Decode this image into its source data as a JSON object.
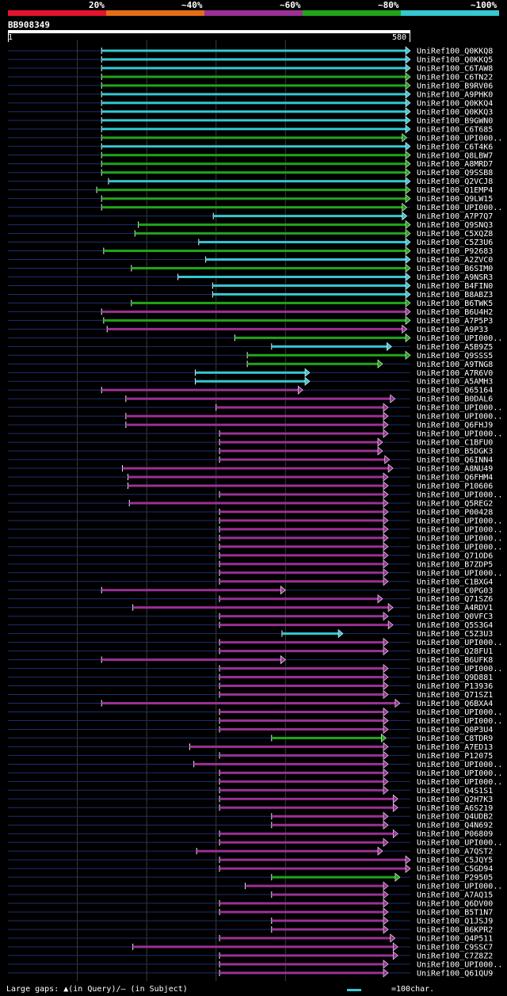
{
  "legend": {
    "items": [
      {
        "label": "20%",
        "color": "#e3152e"
      },
      {
        "label": "~40%",
        "color": "#e46e17"
      },
      {
        "label": "~60%",
        "color": "#9a3196"
      },
      {
        "label": "~80%",
        "color": "#21a51a"
      },
      {
        "label": "~100%",
        "color": "#35c8d2"
      }
    ]
  },
  "query": {
    "id": "BB908349",
    "start": "1",
    "end": "580",
    "length": 580
  },
  "footer": {
    "gaps_text": "Large gaps: ▲(in Query)/– (in Subject)",
    "scale_text": "=100char."
  },
  "chart_data": {
    "type": "alignment-overview",
    "title": "BB908349",
    "x_range": [
      1,
      580
    ],
    "gridlines": [
      100,
      200,
      300,
      400
    ],
    "color_key": {
      "cyan": "~100%",
      "green": "~80%",
      "magenta": "~60%",
      "orange": "~40%",
      "red": "20%"
    },
    "hits": [
      {
        "label": "UniRef100_Q0KKQ8",
        "start": 135,
        "end": 580,
        "identity": "cyan"
      },
      {
        "label": "UniRef100_Q0KKQ5",
        "start": 135,
        "end": 580,
        "identity": "cyan"
      },
      {
        "label": "UniRef100_C6TAW8",
        "start": 135,
        "end": 580,
        "identity": "cyan"
      },
      {
        "label": "UniRef100_C6TN22",
        "start": 135,
        "end": 580,
        "identity": "green"
      },
      {
        "label": "UniRef100_B9RV06",
        "start": 135,
        "end": 580,
        "identity": "green"
      },
      {
        "label": "UniRef100_A9PHK0",
        "start": 135,
        "end": 580,
        "identity": "cyan"
      },
      {
        "label": "UniRef100_Q0KKQ4",
        "start": 135,
        "end": 580,
        "identity": "cyan"
      },
      {
        "label": "UniRef100_Q0KKQ3",
        "start": 135,
        "end": 580,
        "identity": "cyan"
      },
      {
        "label": "UniRef100_B9GWN0",
        "start": 135,
        "end": 580,
        "identity": "cyan"
      },
      {
        "label": "UniRef100_C6T685",
        "start": 135,
        "end": 580,
        "identity": "cyan"
      },
      {
        "label": "UniRef100_UPI000..",
        "start": 135,
        "end": 575,
        "identity": "green"
      },
      {
        "label": "UniRef100_C6T4K6",
        "start": 135,
        "end": 580,
        "identity": "cyan"
      },
      {
        "label": "UniRef100_Q8LBW7",
        "start": 135,
        "end": 580,
        "identity": "green"
      },
      {
        "label": "UniRef100_A8MRD7",
        "start": 135,
        "end": 580,
        "identity": "green"
      },
      {
        "label": "UniRef100_Q9SSB8",
        "start": 135,
        "end": 580,
        "identity": "green"
      },
      {
        "label": "UniRef100_Q2VCJ8",
        "start": 145,
        "end": 580,
        "identity": "cyan"
      },
      {
        "label": "UniRef100_Q1EMP4",
        "start": 128,
        "end": 580,
        "identity": "green"
      },
      {
        "label": "UniRef100_Q9LW15",
        "start": 135,
        "end": 580,
        "identity": "green"
      },
      {
        "label": "UniRef100_UPI000..",
        "start": 135,
        "end": 575,
        "identity": "green"
      },
      {
        "label": "UniRef100_A7P7Q7",
        "start": 296,
        "end": 575,
        "identity": "cyan"
      },
      {
        "label": "UniRef100_Q9SNQ3",
        "start": 188,
        "end": 580,
        "identity": "green"
      },
      {
        "label": "UniRef100_C5XQZ8",
        "start": 183,
        "end": 580,
        "identity": "green"
      },
      {
        "label": "UniRef100_C5Z3U6",
        "start": 275,
        "end": 580,
        "identity": "cyan"
      },
      {
        "label": "UniRef100_P92683",
        "start": 138,
        "end": 580,
        "identity": "green"
      },
      {
        "label": "UniRef100_A2ZVC0",
        "start": 285,
        "end": 580,
        "identity": "cyan"
      },
      {
        "label": "UniRef100_B6SIM0",
        "start": 178,
        "end": 580,
        "identity": "green"
      },
      {
        "label": "UniRef100_A9NSR3",
        "start": 245,
        "end": 580,
        "identity": "cyan"
      },
      {
        "label": "UniRef100_B4FIN0",
        "start": 295,
        "end": 580,
        "identity": "cyan"
      },
      {
        "label": "UniRef100_B8ABZ3",
        "start": 295,
        "end": 580,
        "identity": "cyan"
      },
      {
        "label": "UniRef100_B6TWK5",
        "start": 178,
        "end": 580,
        "identity": "green"
      },
      {
        "label": "UniRef100_B6U4H2",
        "start": 135,
        "end": 580,
        "identity": "magenta"
      },
      {
        "label": "UniRef100_A7P5P3",
        "start": 138,
        "end": 580,
        "identity": "green"
      },
      {
        "label": "UniRef100_A9P33",
        "start": 143,
        "end": 575,
        "identity": "magenta"
      },
      {
        "label": "UniRef100_UPI000..",
        "start": 327,
        "end": 580,
        "identity": "green"
      },
      {
        "label": "UniRef100_A5B9Z5",
        "start": 380,
        "end": 553,
        "identity": "cyan"
      },
      {
        "label": "UniRef100_Q9SSS5",
        "start": 345,
        "end": 580,
        "identity": "green"
      },
      {
        "label": "UniRef100_A9TNG8",
        "start": 345,
        "end": 540,
        "identity": "green"
      },
      {
        "label": "UniRef100_A7R6V0",
        "start": 270,
        "end": 435,
        "identity": "cyan"
      },
      {
        "label": "UniRef100_A5AMH3",
        "start": 270,
        "end": 435,
        "identity": "cyan"
      },
      {
        "label": "UniRef100_Q65164",
        "start": 135,
        "end": 425,
        "identity": "magenta"
      },
      {
        "label": "UniRef100_B0DAL6",
        "start": 170,
        "end": 558,
        "identity": "magenta"
      },
      {
        "label": "UniRef100_UPI000..",
        "start": 300,
        "end": 548,
        "identity": "magenta"
      },
      {
        "label": "UniRef100_UPI000..",
        "start": 170,
        "end": 548,
        "identity": "magenta"
      },
      {
        "label": "UniRef100_Q6FHJ9",
        "start": 170,
        "end": 548,
        "identity": "magenta"
      },
      {
        "label": "UniRef100_UPI000..",
        "start": 305,
        "end": 548,
        "identity": "magenta"
      },
      {
        "label": "UniRef100_C1BFU0",
        "start": 305,
        "end": 540,
        "identity": "magenta"
      },
      {
        "label": "UniRef100_B5DGK3",
        "start": 305,
        "end": 540,
        "identity": "magenta"
      },
      {
        "label": "UniRef100_Q6INN4",
        "start": 305,
        "end": 550,
        "identity": "magenta"
      },
      {
        "label": "UniRef100_A8NU49",
        "start": 165,
        "end": 555,
        "identity": "magenta"
      },
      {
        "label": "UniRef100_Q6FHM4",
        "start": 173,
        "end": 548,
        "identity": "magenta"
      },
      {
        "label": "UniRef100_P10606",
        "start": 173,
        "end": 548,
        "identity": "magenta"
      },
      {
        "label": "UniRef100_UPI000..",
        "start": 305,
        "end": 548,
        "identity": "magenta"
      },
      {
        "label": "UniRef100_Q5REG2",
        "start": 175,
        "end": 548,
        "identity": "magenta"
      },
      {
        "label": "UniRef100_P00428",
        "start": 305,
        "end": 548,
        "identity": "magenta"
      },
      {
        "label": "UniRef100_UPI000..",
        "start": 305,
        "end": 548,
        "identity": "magenta"
      },
      {
        "label": "UniRef100_UPI000..",
        "start": 305,
        "end": 548,
        "identity": "magenta"
      },
      {
        "label": "UniRef100_UPI000..",
        "start": 305,
        "end": 548,
        "identity": "magenta"
      },
      {
        "label": "UniRef100_UPI000..",
        "start": 305,
        "end": 548,
        "identity": "magenta"
      },
      {
        "label": "UniRef100_Q71OD6",
        "start": 305,
        "end": 548,
        "identity": "magenta"
      },
      {
        "label": "UniRef100_B7ZDP5",
        "start": 305,
        "end": 548,
        "identity": "magenta"
      },
      {
        "label": "UniRef100_UPI000..",
        "start": 305,
        "end": 548,
        "identity": "magenta"
      },
      {
        "label": "UniRef100_C1BXG4",
        "start": 305,
        "end": 548,
        "identity": "magenta"
      },
      {
        "label": "UniRef100_C0PG03",
        "start": 135,
        "end": 400,
        "identity": "magenta"
      },
      {
        "label": "UniRef100_Q71SZ6",
        "start": 305,
        "end": 540,
        "identity": "magenta"
      },
      {
        "label": "UniRef100_A4RDV1",
        "start": 180,
        "end": 555,
        "identity": "magenta"
      },
      {
        "label": "UniRef100_Q0VFC3",
        "start": 305,
        "end": 548,
        "identity": "magenta"
      },
      {
        "label": "UniRef100_Q5S3G4",
        "start": 305,
        "end": 555,
        "identity": "magenta"
      },
      {
        "label": "UniRef100_C5Z3U3",
        "start": 395,
        "end": 483,
        "identity": "cyan"
      },
      {
        "label": "UniRef100_UPI000..",
        "start": 305,
        "end": 548,
        "identity": "magenta"
      },
      {
        "label": "UniRef100_Q28FU1",
        "start": 305,
        "end": 548,
        "identity": "magenta"
      },
      {
        "label": "UniRef100_B6UFK8",
        "start": 135,
        "end": 400,
        "identity": "magenta"
      },
      {
        "label": "UniRef100_UPI000..",
        "start": 305,
        "end": 548,
        "identity": "magenta"
      },
      {
        "label": "UniRef100_Q9D881",
        "start": 305,
        "end": 548,
        "identity": "magenta"
      },
      {
        "label": "UniRef100_P13936",
        "start": 305,
        "end": 548,
        "identity": "magenta"
      },
      {
        "label": "UniRef100_Q71SZ1",
        "start": 305,
        "end": 548,
        "identity": "magenta"
      },
      {
        "label": "UniRef100_Q6BXA4",
        "start": 135,
        "end": 565,
        "identity": "magenta"
      },
      {
        "label": "UniRef100_UPI000..",
        "start": 305,
        "end": 548,
        "identity": "magenta"
      },
      {
        "label": "UniRef100_UPI000..",
        "start": 305,
        "end": 548,
        "identity": "magenta"
      },
      {
        "label": "UniRef100_Q0P3U4",
        "start": 305,
        "end": 548,
        "identity": "magenta"
      },
      {
        "label": "UniRef100_C8TDR9",
        "start": 380,
        "end": 545,
        "identity": "green"
      },
      {
        "label": "UniRef100_A7ED13",
        "start": 262,
        "end": 548,
        "identity": "magenta"
      },
      {
        "label": "UniRef100_P12075",
        "start": 305,
        "end": 548,
        "identity": "magenta"
      },
      {
        "label": "UniRef100_UPI000..",
        "start": 268,
        "end": 548,
        "identity": "magenta"
      },
      {
        "label": "UniRef100_UPI000..",
        "start": 305,
        "end": 548,
        "identity": "magenta"
      },
      {
        "label": "UniRef100_UPI000..",
        "start": 305,
        "end": 548,
        "identity": "magenta"
      },
      {
        "label": "UniRef100_Q4S1S1",
        "start": 305,
        "end": 548,
        "identity": "magenta"
      },
      {
        "label": "UniRef100_Q2H7K3",
        "start": 305,
        "end": 562,
        "identity": "magenta"
      },
      {
        "label": "UniRef100_A6S219",
        "start": 305,
        "end": 562,
        "identity": "magenta"
      },
      {
        "label": "UniRef100_Q4UDB2",
        "start": 380,
        "end": 548,
        "identity": "magenta"
      },
      {
        "label": "UniRef100_Q4N692",
        "start": 380,
        "end": 548,
        "identity": "magenta"
      },
      {
        "label": "UniRef100_P06809",
        "start": 305,
        "end": 562,
        "identity": "magenta"
      },
      {
        "label": "UniRef100_UPI000..",
        "start": 305,
        "end": 548,
        "identity": "magenta"
      },
      {
        "label": "UniRef100_A7QST2",
        "start": 272,
        "end": 540,
        "identity": "magenta"
      },
      {
        "label": "UniRef100_C5JQY5",
        "start": 305,
        "end": 580,
        "identity": "magenta"
      },
      {
        "label": "UniRef100_C5GD94",
        "start": 305,
        "end": 580,
        "identity": "magenta"
      },
      {
        "label": "UniRef100_P29505",
        "start": 380,
        "end": 565,
        "identity": "green"
      },
      {
        "label": "UniRef100_UPI000..",
        "start": 342,
        "end": 548,
        "identity": "magenta"
      },
      {
        "label": "UniRef100_A7AQ15",
        "start": 380,
        "end": 548,
        "identity": "magenta"
      },
      {
        "label": "UniRef100_Q6DV00",
        "start": 305,
        "end": 548,
        "identity": "magenta"
      },
      {
        "label": "UniRef100_B5T1N7",
        "start": 305,
        "end": 548,
        "identity": "magenta"
      },
      {
        "label": "UniRef100_Q1JSJ9",
        "start": 380,
        "end": 548,
        "identity": "magenta"
      },
      {
        "label": "UniRef100_B6KPR2",
        "start": 380,
        "end": 548,
        "identity": "magenta"
      },
      {
        "label": "UniRef100_Q4P511",
        "start": 305,
        "end": 558,
        "identity": "magenta"
      },
      {
        "label": "UniRef100_C9SSC7",
        "start": 180,
        "end": 562,
        "identity": "magenta"
      },
      {
        "label": "UniRef100_C7Z8Z2",
        "start": 305,
        "end": 562,
        "identity": "magenta"
      },
      {
        "label": "UniRef100_UPI000..",
        "start": 305,
        "end": 548,
        "identity": "magenta"
      },
      {
        "label": "UniRef100_Q61QU9",
        "start": 305,
        "end": 548,
        "identity": "magenta"
      }
    ]
  }
}
